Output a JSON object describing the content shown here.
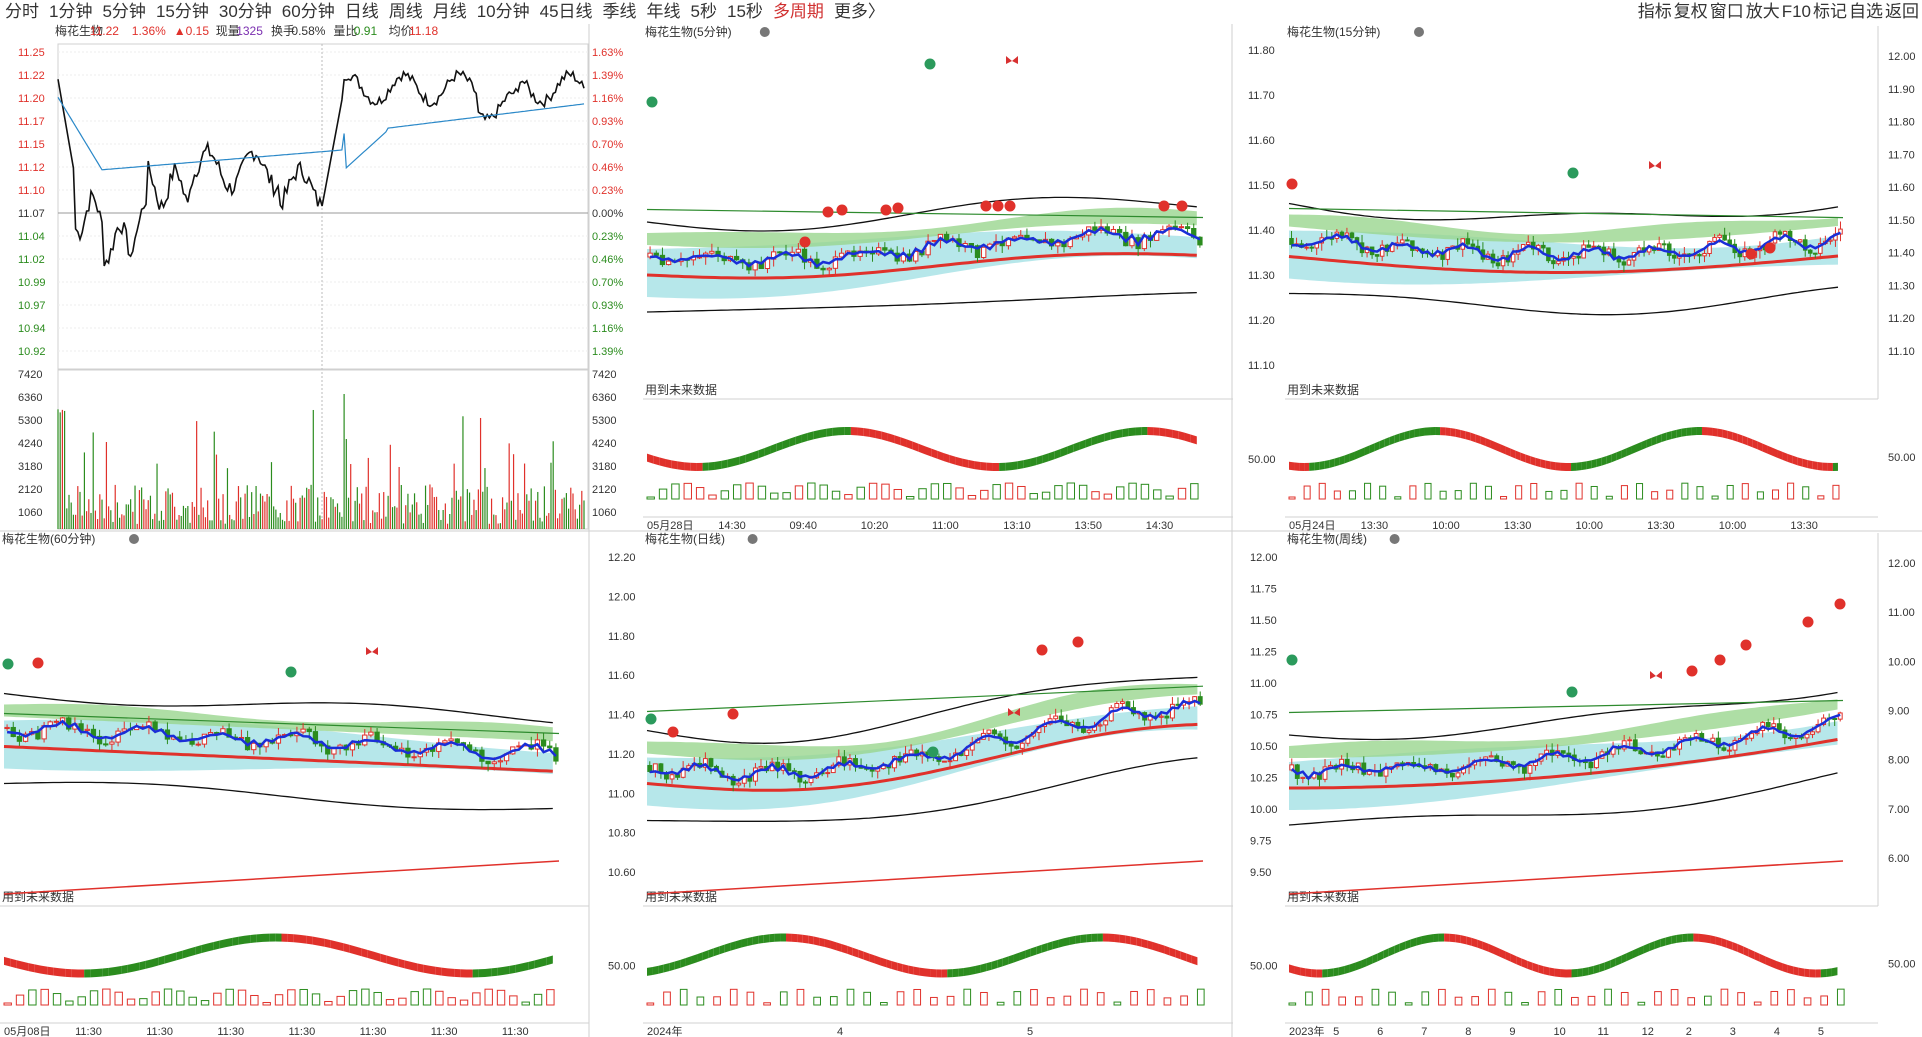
{
  "toolbar": {
    "periods": [
      "分时",
      "1分钟",
      "5分钟",
      "15分钟",
      "30分钟",
      "60分钟",
      "日线",
      "周线",
      "月线",
      "10分钟",
      "45日线",
      "季线",
      "年线",
      "5秒",
      "15秒",
      "多周期",
      "更多〉"
    ],
    "active_index": 15,
    "right_items": [
      "指标",
      "复权",
      "窗口",
      "放大",
      "F10",
      "标记",
      "自选",
      "返回"
    ]
  },
  "colors": {
    "up": "#e0312b",
    "down": "#2b8c1e",
    "ma_blue": "#1a2ed8",
    "avg_line": "#2a88c8",
    "band_fill": "#a9e3e6",
    "cloud_fill": "#9ad68f"
  },
  "intraday": {
    "name": "梅花生物",
    "price": "11.22",
    "change_pct": "1.36%",
    "change": "▲0.15",
    "volume_label": "现量",
    "volume": "1325",
    "turnover_label": "换手",
    "turnover": "0.58%",
    "vol_ratio_label": "量比",
    "vol_ratio": "0.91",
    "avg_label": "均价",
    "avg": "11.18",
    "price_ticks": [
      "11.25",
      "11.22",
      "11.20",
      "11.17",
      "11.15",
      "11.12",
      "11.10",
      "11.07",
      "11.04",
      "11.02",
      "10.99",
      "10.97",
      "10.94",
      "10.92"
    ],
    "pct_ticks": [
      "1.63%",
      "1.39%",
      "1.16%",
      "0.93%",
      "0.70%",
      "0.46%",
      "0.23%",
      "0.00%",
      "0.23%",
      "0.46%",
      "0.70%",
      "0.93%",
      "1.16%",
      "1.39%"
    ],
    "vol_ticks": [
      "7420",
      "6360",
      "5300",
      "4240",
      "3180",
      "2120",
      "1060"
    ]
  },
  "panels": [
    {
      "title": "梅花生物(5分钟)",
      "future_label": "用到未来数据",
      "axis_labels": [],
      "date_labels": [
        "05月28日",
        "14:30",
        "09:40",
        "10:20",
        "11:00",
        "13:10",
        "13:50",
        "14:30"
      ],
      "sub_label": ""
    },
    {
      "title": "梅花生物(15分钟)",
      "future_label": "用到未来数据",
      "axis_labels": [
        "11.80",
        "11.70",
        "11.60",
        "11.50",
        "11.40",
        "11.30",
        "11.20",
        "11.10"
      ],
      "right_labels": [
        "12.00",
        "11.90",
        "11.80",
        "11.70",
        "11.60",
        "11.50",
        "11.40",
        "11.30",
        "11.20",
        "11.10"
      ],
      "date_labels": [
        "05月24日",
        "13:30",
        "10:00",
        "13:30",
        "10:00",
        "13:30",
        "10:00",
        "13:30"
      ],
      "sub_label": "50.00",
      "right_sub_label": "50.00"
    },
    {
      "title": "梅花生物(60分钟)",
      "future_label": "用到未来数据",
      "axis_labels": [],
      "date_labels": [
        "05月08日",
        "11:30",
        "11:30",
        "11:30",
        "11:30",
        "11:30",
        "11:30",
        "11:30"
      ],
      "sub_label": ""
    },
    {
      "title": "梅花生物(日线)",
      "future_label": "用到未来数据",
      "axis_labels": [
        "12.20",
        "12.00",
        "11.80",
        "11.60",
        "11.40",
        "11.20",
        "11.00",
        "10.80",
        "10.60"
      ],
      "date_labels": [
        "2024年",
        "4",
        "5"
      ],
      "sub_label": "50.00"
    },
    {
      "title": "梅花生物(周线)",
      "future_label": "用到未来数据",
      "axis_labels": [
        "12.00",
        "11.75",
        "11.50",
        "11.25",
        "11.00",
        "10.75",
        "10.50",
        "10.25",
        "10.00",
        "9.75",
        "9.50"
      ],
      "right_labels": [
        "12.00",
        "11.00",
        "10.00",
        "9.00",
        "8.00",
        "7.00",
        "6.00"
      ],
      "date_labels": [
        "2023年",
        "5",
        "6",
        "7",
        "8",
        "9",
        "10",
        "11",
        "12",
        "2",
        "3",
        "4",
        "5"
      ],
      "sub_label": "50.00",
      "right_sub_label": "50.00"
    }
  ]
}
